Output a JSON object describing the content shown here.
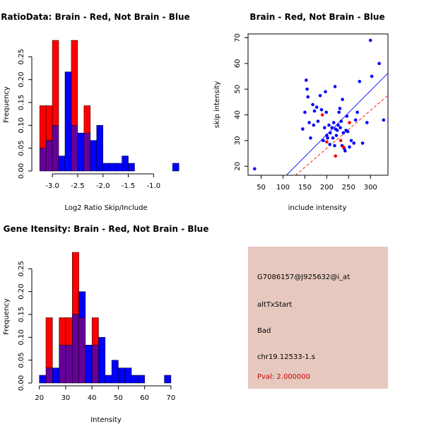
{
  "chart_data": [
    {
      "type": "bar",
      "id": "ratio_hist",
      "title": "RatioData: Brain - Red, Not Brain - Blue",
      "xlabel": "Log2 Ratio Skip/Include",
      "ylabel": "Frequency",
      "xlim": [
        -3.35,
        -0.6
      ],
      "ylim": [
        0,
        0.3
      ],
      "xticks": [
        -3.0,
        -2.5,
        -2.0,
        -1.5,
        -1.0
      ],
      "xtick_labels": [
        "-3.0",
        "-2.5",
        "-2.0",
        "-1.5",
        "-1.0"
      ],
      "yticks": [
        0,
        0.05,
        0.1,
        0.15,
        0.2,
        0.25
      ],
      "ytick_labels": [
        "0.00",
        "0.05",
        "0.10",
        "0.15",
        "0.20",
        "0.25"
      ],
      "bin_start": -3.25,
      "bin_width": 0.125,
      "series": [
        {
          "name": "Brain",
          "color": "#ff0000",
          "values": [
            0.143,
            0.143,
            0.286,
            0,
            0,
            0.286,
            0,
            0.143,
            0,
            0,
            0,
            0,
            0,
            0,
            0,
            0,
            0,
            0,
            0,
            0,
            0,
            0
          ]
        },
        {
          "name": "Not Brain",
          "color": "#0000ff",
          "values": [
            0.05,
            0.067,
            0.1,
            0.033,
            0.217,
            0.1,
            0.083,
            0.083,
            0.067,
            0.1,
            0.017,
            0.017,
            0.017,
            0.033,
            0.017,
            0,
            0,
            0,
            0,
            0,
            0,
            0.017
          ]
        }
      ],
      "overlap_color": "#660099"
    },
    {
      "type": "scatter",
      "id": "skip_scatter",
      "title": "Brain - Red, Not Brain - Blue",
      "xlabel": "include intensity",
      "ylabel": "skip intensity",
      "xlim": [
        20,
        340
      ],
      "ylim": [
        16.5,
        71.5
      ],
      "xticks": [
        50,
        100,
        150,
        200,
        250,
        300
      ],
      "xtick_labels": [
        "50",
        "100",
        "150",
        "200",
        "250",
        "300"
      ],
      "yticks": [
        20,
        30,
        40,
        50,
        60,
        70
      ],
      "ytick_labels": [
        "20",
        "30",
        "40",
        "50",
        "60",
        "70"
      ],
      "series": [
        {
          "name": "Not Brain",
          "color": "#0000ff",
          "points": [
            [
              35,
              19
            ],
            [
              145,
              34.5
            ],
            [
              150,
              41
            ],
            [
              153,
              53.5
            ],
            [
              155,
              50
            ],
            [
              157,
              47
            ],
            [
              160,
              37
            ],
            [
              163,
              31
            ],
            [
              168,
              44
            ],
            [
              170,
              36
            ],
            [
              172,
              41.5
            ],
            [
              177,
              43
            ],
            [
              180,
              37.5
            ],
            [
              185,
              47.5
            ],
            [
              188,
              42
            ],
            [
              192,
              30
            ],
            [
              195,
              35
            ],
            [
              197,
              49
            ],
            [
              199,
              41
            ],
            [
              200,
              32
            ],
            [
              202,
              31
            ],
            [
              205,
              36
            ],
            [
              207,
              28.5
            ],
            [
              208,
              33
            ],
            [
              212,
              35
            ],
            [
              214,
              31
            ],
            [
              216,
              37
            ],
            [
              218,
              28
            ],
            [
              219,
              51
            ],
            [
              220,
              34.5
            ],
            [
              222,
              32
            ],
            [
              224,
              34
            ],
            [
              226,
              36
            ],
            [
              228,
              41
            ],
            [
              230,
              42.5
            ],
            [
              231,
              35
            ],
            [
              233,
              37.5
            ],
            [
              235,
              28
            ],
            [
              236,
              46
            ],
            [
              238,
              33
            ],
            [
              240,
              27
            ],
            [
              242,
              26
            ],
            [
              244,
              34
            ],
            [
              246,
              39.5
            ],
            [
              248,
              33.5
            ],
            [
              252,
              27.5
            ],
            [
              256,
              30
            ],
            [
              262,
              29
            ],
            [
              266,
              38
            ],
            [
              270,
              41
            ],
            [
              275,
              53
            ],
            [
              282,
              29
            ],
            [
              292,
              37
            ],
            [
              300,
              69
            ],
            [
              303,
              55
            ],
            [
              320,
              60
            ],
            [
              330,
              38
            ]
          ]
        },
        {
          "name": "Brain",
          "color": "#ff0000",
          "points": [
            [
              190,
              40
            ],
            [
              200,
              29.5
            ],
            [
              220,
              24
            ],
            [
              232,
              30
            ],
            [
              238,
              27.5
            ],
            [
              252,
              37
            ]
          ]
        }
      ],
      "lines": [
        {
          "name": "fit-blue",
          "color": "#0000ff",
          "style": "solid",
          "from": [
            100,
            15.2
          ],
          "to": [
            340,
            56.2
          ]
        },
        {
          "name": "fit-red",
          "color": "#ff0000",
          "style": "dashed",
          "from": [
            120,
            15.2
          ],
          "to": [
            340,
            47.6
          ]
        }
      ]
    },
    {
      "type": "bar",
      "id": "gene_hist",
      "title": "Gene Itensity: Brain - Red, Not Brain - Blue",
      "xlabel": "Intensity",
      "ylabel": "Frequency",
      "xlim": [
        18.2,
        71.1
      ],
      "ylim": [
        0,
        0.3
      ],
      "xticks": [
        20,
        30,
        40,
        50,
        60,
        70
      ],
      "xtick_labels": [
        "20",
        "30",
        "40",
        "50",
        "60",
        "70"
      ],
      "yticks": [
        0,
        0.05,
        0.1,
        0.15,
        0.2,
        0.25
      ],
      "ytick_labels": [
        "0.00",
        "0.05",
        "0.10",
        "0.15",
        "0.20",
        "0.25"
      ],
      "bin_start": 20,
      "bin_width": 2.5,
      "series": [
        {
          "name": "Brain",
          "color": "#ff0000",
          "values": [
            0,
            0.143,
            0,
            0.143,
            0.143,
            0.286,
            0.143,
            0,
            0.143,
            0,
            0,
            0,
            0,
            0,
            0,
            0,
            0,
            0,
            0,
            0
          ]
        },
        {
          "name": "Not Brain",
          "color": "#0000ff",
          "values": [
            0.017,
            0.033,
            0.033,
            0.083,
            0.083,
            0.15,
            0.2,
            0.083,
            0.083,
            0.1,
            0.017,
            0.05,
            0.033,
            0.033,
            0.017,
            0.017,
            0,
            0,
            0,
            0.017
          ]
        }
      ],
      "overlap_color": "#660099"
    }
  ],
  "info_panel": {
    "background": "#e6c8bf",
    "probe_id": "G7086157@J925632@i_at",
    "event_type": "altTxStart",
    "quality": "Bad",
    "location": "chr19.12533-1.s",
    "pval": "Pval: 2.000000",
    "pval_color": "#cc0000"
  }
}
